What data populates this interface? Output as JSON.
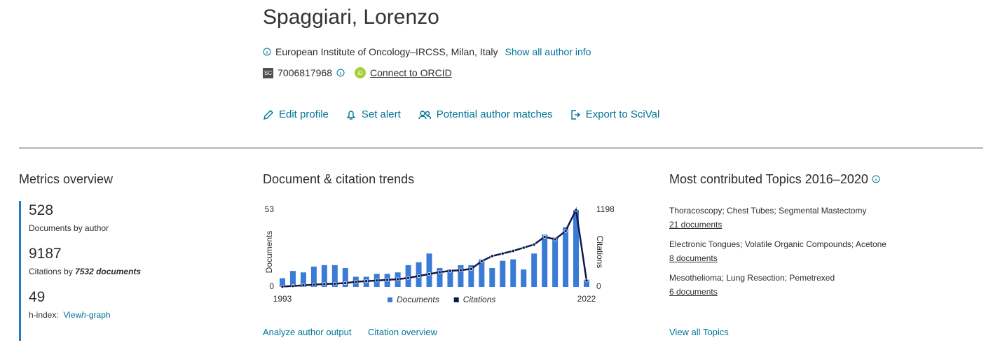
{
  "header": {
    "name": "Spaggiari, Lorenzo",
    "affiliation": "European Institute of Oncology–IRCSS, Milan, Italy",
    "show_info": "Show all author info",
    "sc_badge": "SC",
    "author_id": "7006817968",
    "orcid": "Connect to ORCID"
  },
  "actions": [
    "Edit profile",
    "Set alert",
    "Potential author matches",
    "Export to SciVal"
  ],
  "metrics": {
    "title": "Metrics overview",
    "documents": 528,
    "documents_label": "Documents by author",
    "citations": 9187,
    "citations_label": "Citations by",
    "citations_docs": "7532 documents",
    "h_index": 49,
    "h_index_label": "h-index:",
    "h_graph_prefix": "View",
    "h_graph_h": "h",
    "h_graph_suffix": "-graph"
  },
  "trends": {
    "title": "Document & citation trends",
    "links": [
      "Analyze author output",
      "Citation overview"
    ]
  },
  "chart_data": {
    "type": "bar-line",
    "y_label": "Documents",
    "y2_label": "Citations",
    "x": [
      1993,
      1994,
      1995,
      1996,
      1997,
      1998,
      1999,
      2000,
      2001,
      2002,
      2003,
      2004,
      2005,
      2006,
      2007,
      2008,
      2009,
      2010,
      2011,
      2012,
      2013,
      2014,
      2015,
      2016,
      2017,
      2018,
      2019,
      2020,
      2021,
      2022
    ],
    "xlim": [
      1993,
      2022
    ],
    "xticks": [
      1993,
      2022
    ],
    "ylim": [
      0,
      53
    ],
    "yticks": [
      0,
      53
    ],
    "y2lim": [
      0,
      1198
    ],
    "y2ticks": [
      0,
      1198
    ],
    "series": [
      {
        "name": "Documents",
        "color": "#3a7bd5",
        "values": [
          6,
          11,
          10,
          14,
          15,
          15,
          13,
          7,
          7,
          9,
          9,
          10,
          15,
          17,
          23,
          13,
          12,
          15,
          15,
          19,
          13,
          18,
          19,
          12,
          23,
          36,
          34,
          41,
          53,
          5
        ]
      },
      {
        "name": "Citations",
        "color": "#0c1a4d",
        "axis": "y2",
        "values": [
          5,
          15,
          25,
          35,
          45,
          50,
          60,
          80,
          90,
          100,
          110,
          120,
          140,
          170,
          200,
          230,
          250,
          260,
          280,
          400,
          480,
          520,
          560,
          610,
          660,
          780,
          740,
          870,
          1198,
          100
        ]
      }
    ]
  },
  "topics": {
    "title": "Most contributed Topics 2016–2020",
    "items": [
      {
        "name": "Thoracoscopy; Chest Tubes; Segmental Mastectomy",
        "count": "21 documents"
      },
      {
        "name": "Electronic Tongues; Volatile Organic Compounds; Acetone",
        "count": "8 documents"
      },
      {
        "name": "Mesothelioma; Lung Resection; Pemetrexed",
        "count": "6 documents"
      }
    ],
    "view_all": "View all Topics"
  }
}
